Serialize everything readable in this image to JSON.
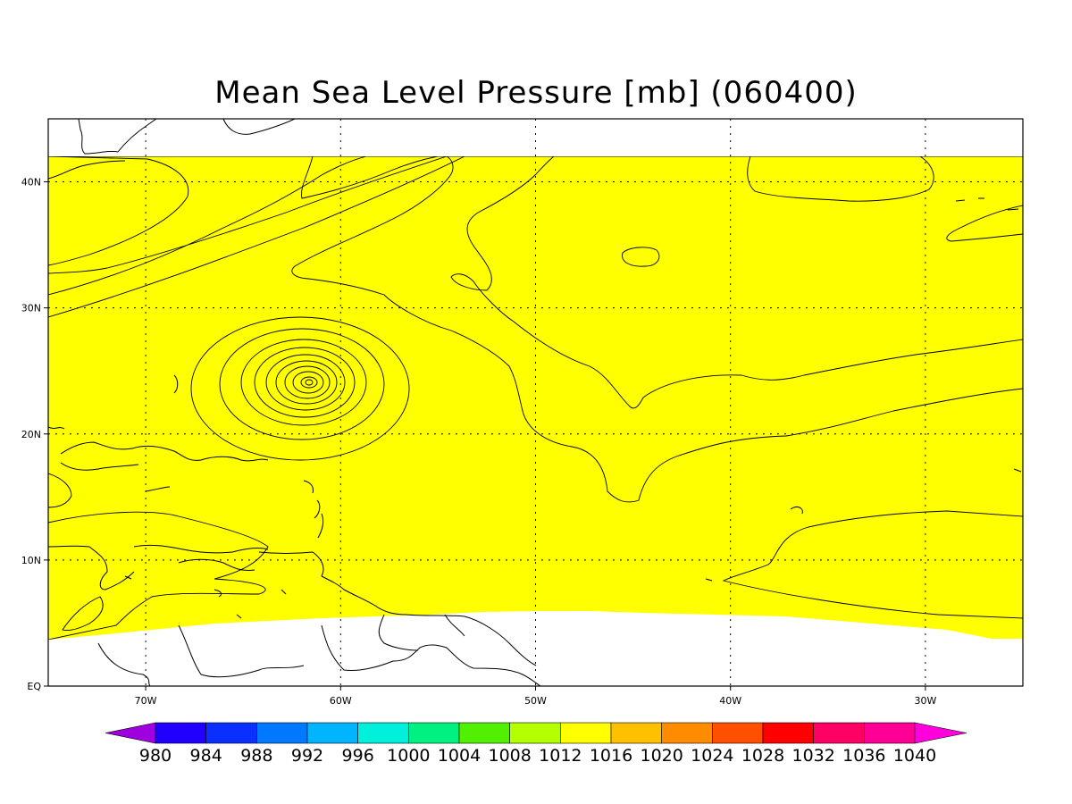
{
  "title": "Mean Sea Level Pressure [mb] (060400)",
  "map": {
    "lon_range": [
      -75,
      -25
    ],
    "lat_range": [
      0,
      45
    ],
    "lon_ticks": [
      {
        "value": -70,
        "label": "70W"
      },
      {
        "value": -60,
        "label": "60W"
      },
      {
        "value": -50,
        "label": "50W"
      },
      {
        "value": -40,
        "label": "40W"
      },
      {
        "value": -30,
        "label": "30W"
      }
    ],
    "lat_ticks": [
      {
        "value": 0,
        "label": "EQ"
      },
      {
        "value": 10,
        "label": "10N"
      },
      {
        "value": 20,
        "label": "20N"
      },
      {
        "value": 30,
        "label": "30N"
      },
      {
        "value": 40,
        "label": "40N"
      }
    ],
    "low_center": {
      "lon": -61.5,
      "lat": 24.0
    }
  },
  "colorbar": {
    "levels": [
      980,
      984,
      988,
      992,
      996,
      1000,
      1004,
      1008,
      1012,
      1016,
      1020,
      1024,
      1028,
      1032,
      1036,
      1040
    ],
    "labels": [
      "980",
      "984",
      "988",
      "992",
      "996",
      "1000",
      "1004",
      "1008",
      "1012",
      "1016",
      "1020",
      "1024",
      "1028",
      "1032",
      "1036",
      "1040"
    ],
    "colors": [
      "#a000e0",
      "#2200ff",
      "#0a30ff",
      "#0078ff",
      "#00b4ff",
      "#00f0dc",
      "#00f082",
      "#50f000",
      "#b4ff00",
      "#ffff00",
      "#ffc000",
      "#ff8c00",
      "#ff5000",
      "#ff0000",
      "#ff0064",
      "#ff0096",
      "#ff00dc"
    ]
  }
}
